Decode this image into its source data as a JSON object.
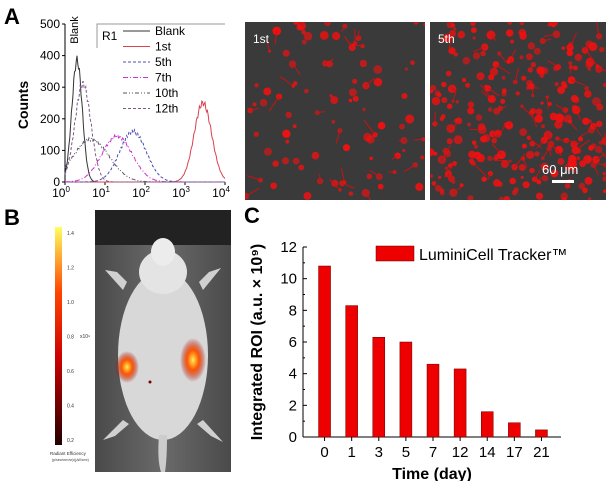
{
  "panels": {
    "a": "A",
    "b": "B",
    "c": "C"
  },
  "chart_data": [
    {
      "type": "line",
      "panel": "A",
      "ylabel": "Counts",
      "xscale": "log",
      "xlim": [
        1,
        10000
      ],
      "ylim": [
        0,
        500
      ],
      "xticks": [
        "10^0",
        "10^1",
        "10^2",
        "10^3",
        "10^4"
      ],
      "yticks": [
        0,
        100,
        200,
        300,
        400,
        500
      ],
      "gate_label": "R1",
      "peak_label": "Blank",
      "legend_position": "top-right",
      "series": [
        {
          "name": "Blank",
          "color": "#333333",
          "dash": "solid",
          "peak_x": 2,
          "peak_y": 385
        },
        {
          "name": "1st",
          "color": "#d9424e",
          "dash": "solid",
          "peak_x": 2800,
          "peak_y": 250
        },
        {
          "name": "5th",
          "color": "#4b4fb0",
          "dash": "dashed",
          "peak_x": 50,
          "peak_y": 160
        },
        {
          "name": "7th",
          "color": "#cc33cc",
          "dash": "dashdot",
          "peak_x": 20,
          "peak_y": 145
        },
        {
          "name": "10th",
          "color": "#555566",
          "dash": "dashdotdot",
          "peak_x": 4.5,
          "peak_y": 135
        },
        {
          "name": "12th",
          "color": "#7a5a8a",
          "dash": "dashed",
          "peak_x": 2.8,
          "peak_y": 310
        }
      ]
    },
    {
      "type": "bar",
      "panel": "C",
      "xlabel": "Time (day)",
      "ylabel": "Integrated ROI (a.u. × 10⁹)",
      "categories": [
        "0",
        "1",
        "3",
        "5",
        "7",
        "12",
        "14",
        "17",
        "21"
      ],
      "values": [
        10.8,
        8.3,
        6.3,
        6.0,
        4.6,
        4.3,
        1.6,
        0.9,
        0.45
      ],
      "ylim": [
        0,
        12
      ],
      "yticks": [
        0,
        2,
        4,
        6,
        8,
        10,
        12
      ],
      "legend": "LuminiCell Tracker™",
      "legend_position": "top-right",
      "color": "#ee0000"
    }
  ],
  "images": {
    "micro_1": "1st",
    "micro_5": "5th",
    "scale_bar": "60 μm"
  },
  "colorbar": {
    "ticks": [
      "1.4",
      "1.2",
      "1.0",
      "0.8",
      "0.6",
      "0.4",
      "0.2"
    ],
    "multiplier": "x10⁹",
    "title": "Radiant Efficiency",
    "units": "(p/sec/cm²/sr)/(μW/cm²)"
  }
}
